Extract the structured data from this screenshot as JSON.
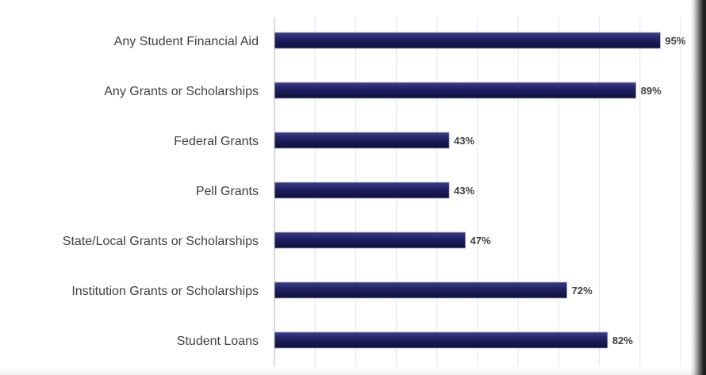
{
  "chart_data": {
    "type": "bar",
    "orientation": "horizontal",
    "categories": [
      "Any Student Financial Aid",
      "Any Grants or Scholarships",
      "Federal Grants",
      "Pell Grants",
      "State/Local Grants or Scholarships",
      "Institution Grants or Scholarships",
      "Student Loans"
    ],
    "values": [
      95,
      89,
      43,
      43,
      47,
      72,
      82
    ],
    "data_labels": [
      "95%",
      "89%",
      "43%",
      "43%",
      "47%",
      "72%",
      "82%"
    ],
    "xlim": [
      0,
      100
    ],
    "grid": true,
    "bar_color": "#1e1f5e",
    "legend": false
  }
}
